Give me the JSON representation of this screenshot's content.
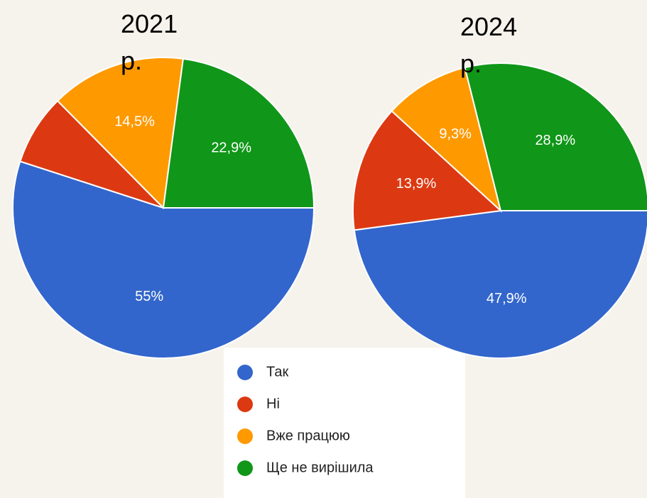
{
  "chart_data": [
    {
      "type": "pie",
      "title": "2021 р.",
      "categories": [
        "Так",
        "Ні",
        "Вже працюю",
        "Ще не вирішила"
      ],
      "values": [
        55,
        7.6,
        14.5,
        22.9
      ],
      "value_labels": [
        "55%",
        null,
        "14,5%",
        "22,9%"
      ],
      "colors": [
        "#3366cc",
        "#dc3912",
        "#ff9900",
        "#109618"
      ]
    },
    {
      "type": "pie",
      "title": "2024 р.",
      "categories": [
        "Так",
        "Ні",
        "Вже працюю",
        "Ще не вирішила"
      ],
      "values": [
        47.9,
        13.9,
        9.3,
        28.9
      ],
      "value_labels": [
        "47,9%",
        "13,9%",
        "9,3%",
        "28,9%"
      ],
      "colors": [
        "#3366cc",
        "#dc3912",
        "#ff9900",
        "#109618"
      ]
    }
  ]
}
